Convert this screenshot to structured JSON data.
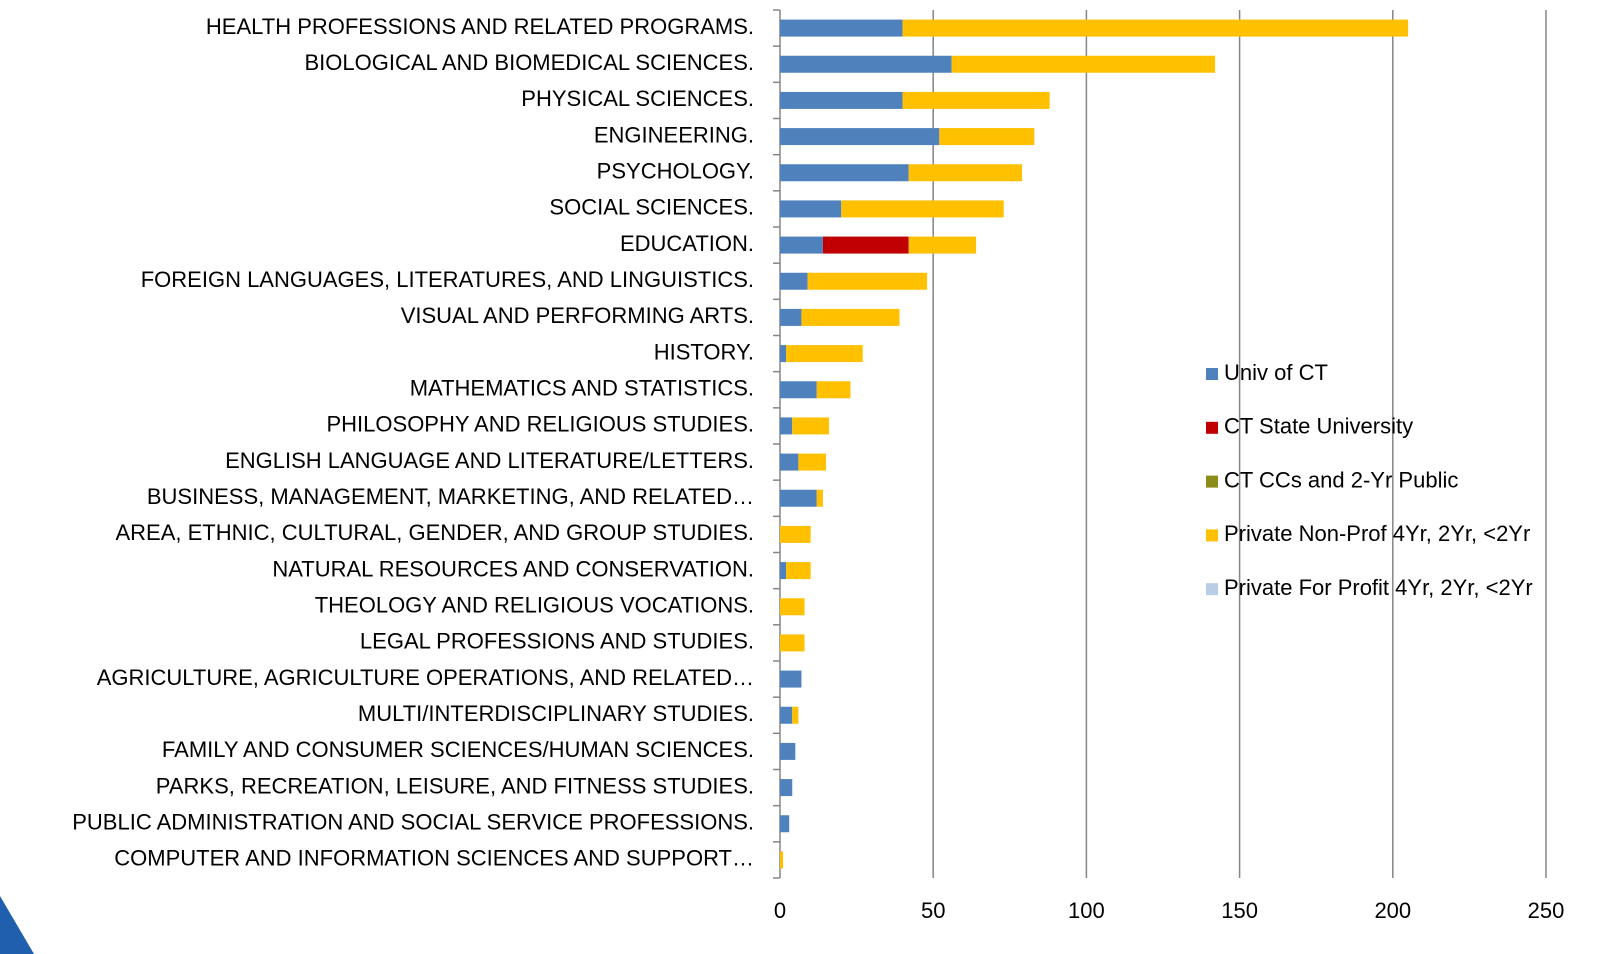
{
  "chart_data": {
    "type": "stacked_barh",
    "categories": [
      "HEALTH PROFESSIONS AND RELATED PROGRAMS.",
      "BIOLOGICAL AND BIOMEDICAL SCIENCES.",
      "PHYSICAL SCIENCES.",
      "ENGINEERING.",
      "PSYCHOLOGY.",
      "SOCIAL SCIENCES.",
      "EDUCATION.",
      "FOREIGN LANGUAGES, LITERATURES, AND LINGUISTICS.",
      "VISUAL AND PERFORMING ARTS.",
      "HISTORY.",
      "MATHEMATICS AND STATISTICS.",
      "PHILOSOPHY AND RELIGIOUS STUDIES.",
      "ENGLISH LANGUAGE AND LITERATURE/LETTERS.",
      "BUSINESS, MANAGEMENT, MARKETING, AND RELATED…",
      "AREA, ETHNIC, CULTURAL, GENDER, AND GROUP STUDIES.",
      "NATURAL RESOURCES AND CONSERVATION.",
      "THEOLOGY AND RELIGIOUS VOCATIONS.",
      "LEGAL PROFESSIONS AND STUDIES.",
      "AGRICULTURE, AGRICULTURE OPERATIONS, AND RELATED…",
      "MULTI/INTERDISCIPLINARY STUDIES.",
      "FAMILY AND CONSUMER SCIENCES/HUMAN SCIENCES.",
      "PARKS, RECREATION, LEISURE, AND FITNESS STUDIES.",
      "PUBLIC ADMINISTRATION AND SOCIAL SERVICE PROFESSIONS.",
      "COMPUTER AND INFORMATION SCIENCES AND SUPPORT…"
    ],
    "series": [
      {
        "name": "Univ of CT",
        "color": "#4f81bd",
        "values": [
          40,
          56,
          40,
          52,
          42,
          20,
          14,
          9,
          7,
          2,
          12,
          4,
          6,
          12,
          0,
          2,
          0,
          0,
          7,
          4,
          5,
          4,
          3,
          0
        ]
      },
      {
        "name": "CT State University",
        "color": "#c00000",
        "values": [
          0,
          0,
          0,
          0,
          0,
          0,
          28,
          0,
          0,
          0,
          0,
          0,
          0,
          0,
          0,
          0,
          0,
          0,
          0,
          0,
          0,
          0,
          0,
          0
        ]
      },
      {
        "name": "CT CCs and 2-Yr Public",
        "color": "#8c8c1a",
        "values": [
          0,
          0,
          0,
          0,
          0,
          0,
          0,
          0,
          0,
          0,
          0,
          0,
          0,
          0,
          0,
          0,
          0,
          0,
          0,
          0,
          0,
          0,
          0,
          0
        ]
      },
      {
        "name": "Private Non-Prof 4Yr, 2Yr, <2Yr",
        "color": "#ffc000",
        "values": [
          165,
          86,
          48,
          31,
          37,
          53,
          22,
          39,
          32,
          25,
          11,
          12,
          9,
          2,
          10,
          8,
          8,
          8,
          0,
          2,
          0,
          0,
          0,
          1
        ]
      },
      {
        "name": "Private For Profit 4Yr, 2Yr, <2Yr",
        "color": "#b9cde5",
        "values": [
          0,
          0,
          0,
          0,
          0,
          0,
          0,
          0,
          0,
          0,
          0,
          0,
          0,
          0,
          0,
          0,
          0,
          0,
          0,
          0,
          0,
          0,
          0,
          0
        ]
      }
    ],
    "xlim": [
      0,
      250
    ],
    "xticks": [
      0,
      50,
      100,
      150,
      200,
      250
    ],
    "grid": true,
    "legend": "right"
  }
}
